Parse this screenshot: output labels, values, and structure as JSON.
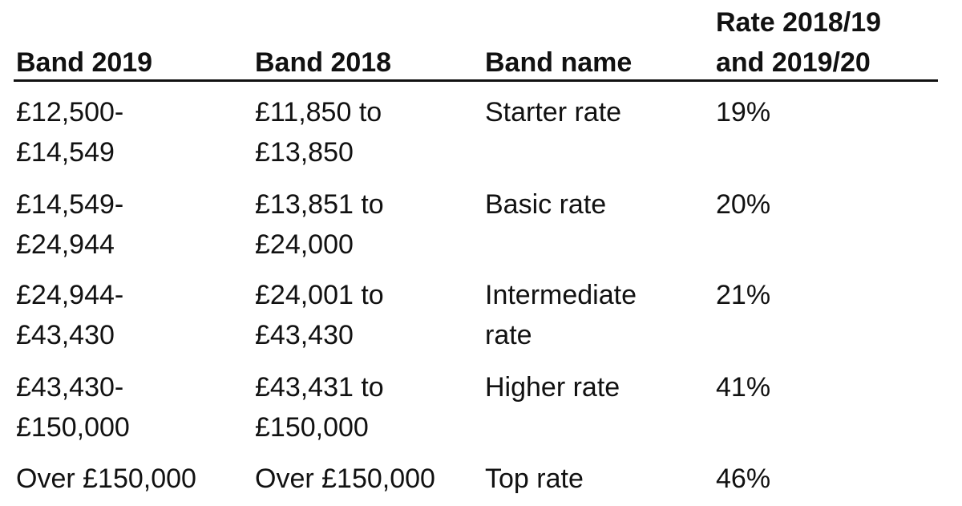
{
  "headers": [
    "Band 2019",
    "Band 2018",
    "Band name",
    "Rate 2018/19\nand 2019/20"
  ],
  "rows": [
    [
      "£12,500-\n£14,549",
      "£11,850 to\n£13,850",
      "Starter rate",
      "19%"
    ],
    [
      "£14,549-\n£24,944",
      "£13,851 to\n£24,000",
      "Basic rate",
      "20%"
    ],
    [
      "£24,944-\n£43,430",
      "£24,001 to\n£43,430",
      "Intermediate\nrate",
      "21%"
    ],
    [
      "£43,430-\n£150,000",
      "£43,431 to\n£150,000",
      "Higher rate",
      "41%"
    ],
    [
      "Over £150,000",
      "Over £150,000",
      "Top rate",
      "46%"
    ]
  ]
}
